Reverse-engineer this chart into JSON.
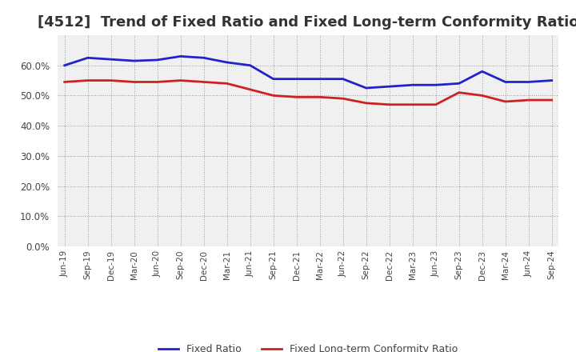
{
  "title": "[4512]  Trend of Fixed Ratio and Fixed Long-term Conformity Ratio",
  "x_labels": [
    "Jun-19",
    "Sep-19",
    "Dec-19",
    "Mar-20",
    "Jun-20",
    "Sep-20",
    "Dec-20",
    "Mar-21",
    "Jun-21",
    "Sep-21",
    "Dec-21",
    "Mar-22",
    "Jun-22",
    "Sep-22",
    "Dec-22",
    "Mar-23",
    "Jun-23",
    "Sep-23",
    "Dec-23",
    "Mar-24",
    "Jun-24",
    "Sep-24"
  ],
  "fixed_ratio": [
    60.0,
    62.5,
    62.0,
    61.5,
    61.8,
    63.0,
    62.5,
    61.0,
    60.0,
    55.5,
    55.5,
    55.5,
    55.5,
    52.5,
    53.0,
    53.5,
    53.5,
    54.0,
    58.0,
    54.5,
    54.5,
    55.0
  ],
  "fixed_lt_ratio": [
    54.5,
    55.0,
    55.0,
    54.5,
    54.5,
    55.0,
    54.5,
    54.0,
    52.0,
    50.0,
    49.5,
    49.5,
    49.0,
    47.5,
    47.0,
    47.0,
    47.0,
    51.0,
    50.0,
    48.0,
    48.5,
    48.5
  ],
  "fixed_ratio_color": "#2222cc",
  "fixed_lt_ratio_color": "#cc2222",
  "background_color": "#ffffff",
  "plot_bg_color": "#f0f0f0",
  "grid_color": "#999999",
  "ylim": [
    0,
    70
  ],
  "yticks": [
    0.0,
    10.0,
    20.0,
    30.0,
    40.0,
    50.0,
    60.0
  ],
  "legend_fixed": "Fixed Ratio",
  "legend_fixed_lt": "Fixed Long-term Conformity Ratio",
  "title_fontsize": 13,
  "tick_label_color": "#444444",
  "line_width": 2.0
}
